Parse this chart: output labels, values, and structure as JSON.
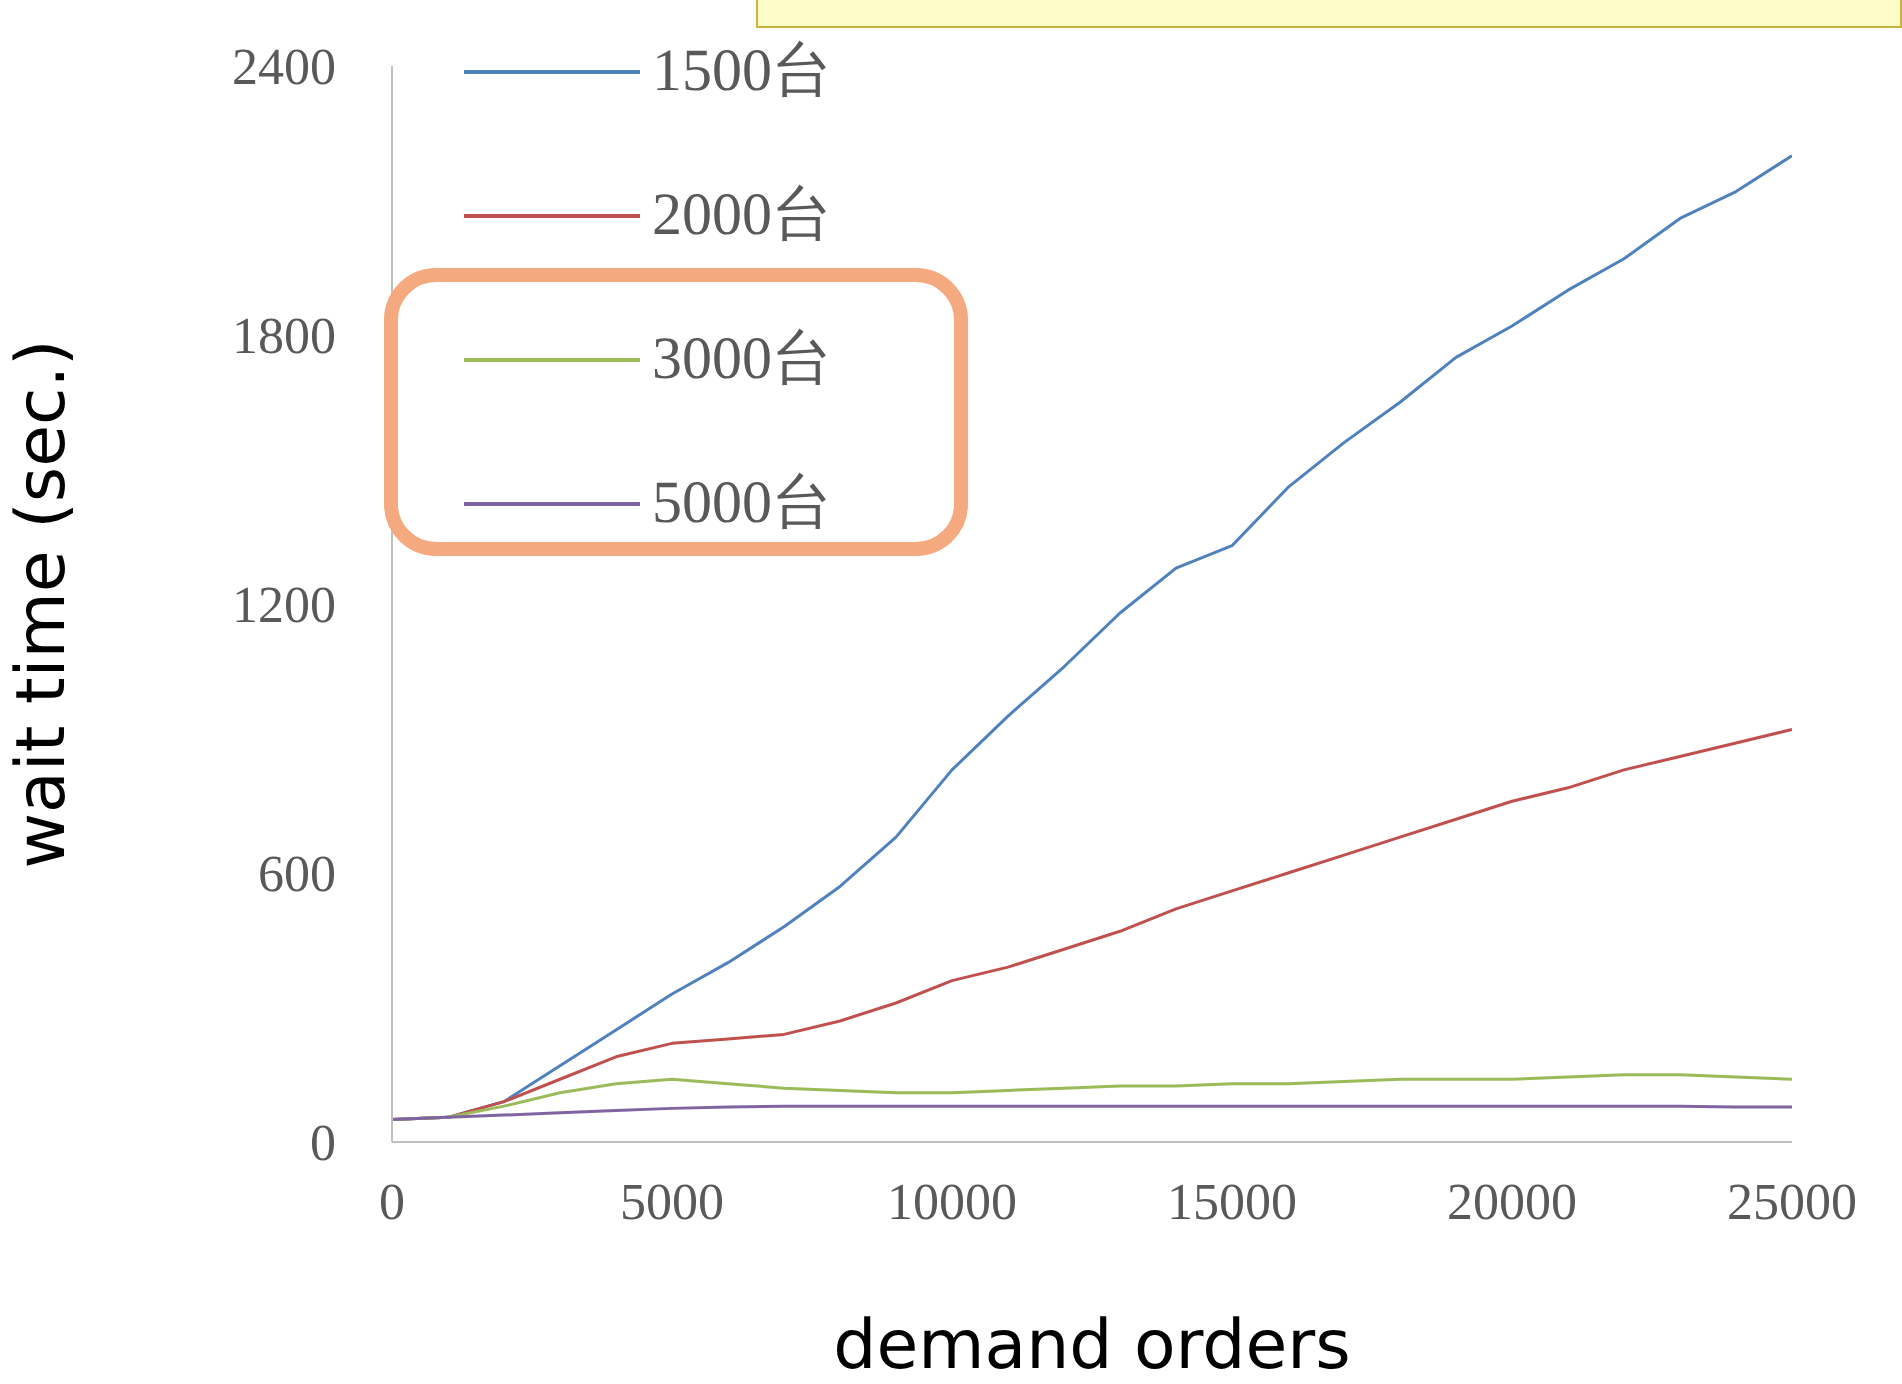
{
  "chart_data": {
    "type": "line",
    "xlabel": "demand orders",
    "ylabel": "wait time (sec.)",
    "x": [
      0,
      1000,
      2000,
      3000,
      4000,
      5000,
      6000,
      7000,
      8000,
      9000,
      10000,
      11000,
      12000,
      13000,
      14000,
      15000,
      16000,
      17000,
      18000,
      19000,
      20000,
      21000,
      22000,
      23000,
      24000,
      25000
    ],
    "series": [
      {
        "name": "1500台",
        "color": "#4f81bd",
        "values": [
          50,
          55,
          90,
          170,
          250,
          330,
          400,
          480,
          570,
          680,
          830,
          950,
          1060,
          1180,
          1280,
          1330,
          1460,
          1560,
          1650,
          1750,
          1820,
          1900,
          1970,
          2060,
          2120,
          2200
        ]
      },
      {
        "name": "2000台",
        "color": "#c0504d",
        "values": [
          50,
          55,
          90,
          140,
          190,
          220,
          230,
          240,
          270,
          310,
          360,
          390,
          430,
          470,
          520,
          560,
          600,
          640,
          680,
          720,
          760,
          790,
          830,
          860,
          890,
          920
        ]
      },
      {
        "name": "3000台",
        "color": "#9bbb59",
        "values": [
          50,
          55,
          80,
          110,
          130,
          140,
          130,
          120,
          115,
          110,
          110,
          115,
          120,
          125,
          125,
          130,
          130,
          135,
          140,
          140,
          140,
          145,
          150,
          150,
          145,
          140
        ]
      },
      {
        "name": "5000台",
        "color": "#8064a2",
        "values": [
          50,
          55,
          60,
          65,
          70,
          75,
          78,
          80,
          80,
          80,
          80,
          80,
          80,
          80,
          80,
          80,
          80,
          80,
          80,
          80,
          80,
          80,
          80,
          80,
          78,
          78
        ]
      }
    ],
    "xlim": [
      0,
      25000
    ],
    "xticks": [
      0,
      5000,
      10000,
      15000,
      20000,
      25000
    ],
    "ylim": [
      0,
      2400
    ],
    "yticks": [
      0,
      600,
      1200,
      1800,
      2400
    ],
    "grid": false,
    "legend": "top left",
    "marker": "none",
    "line_style": "solid"
  }
}
